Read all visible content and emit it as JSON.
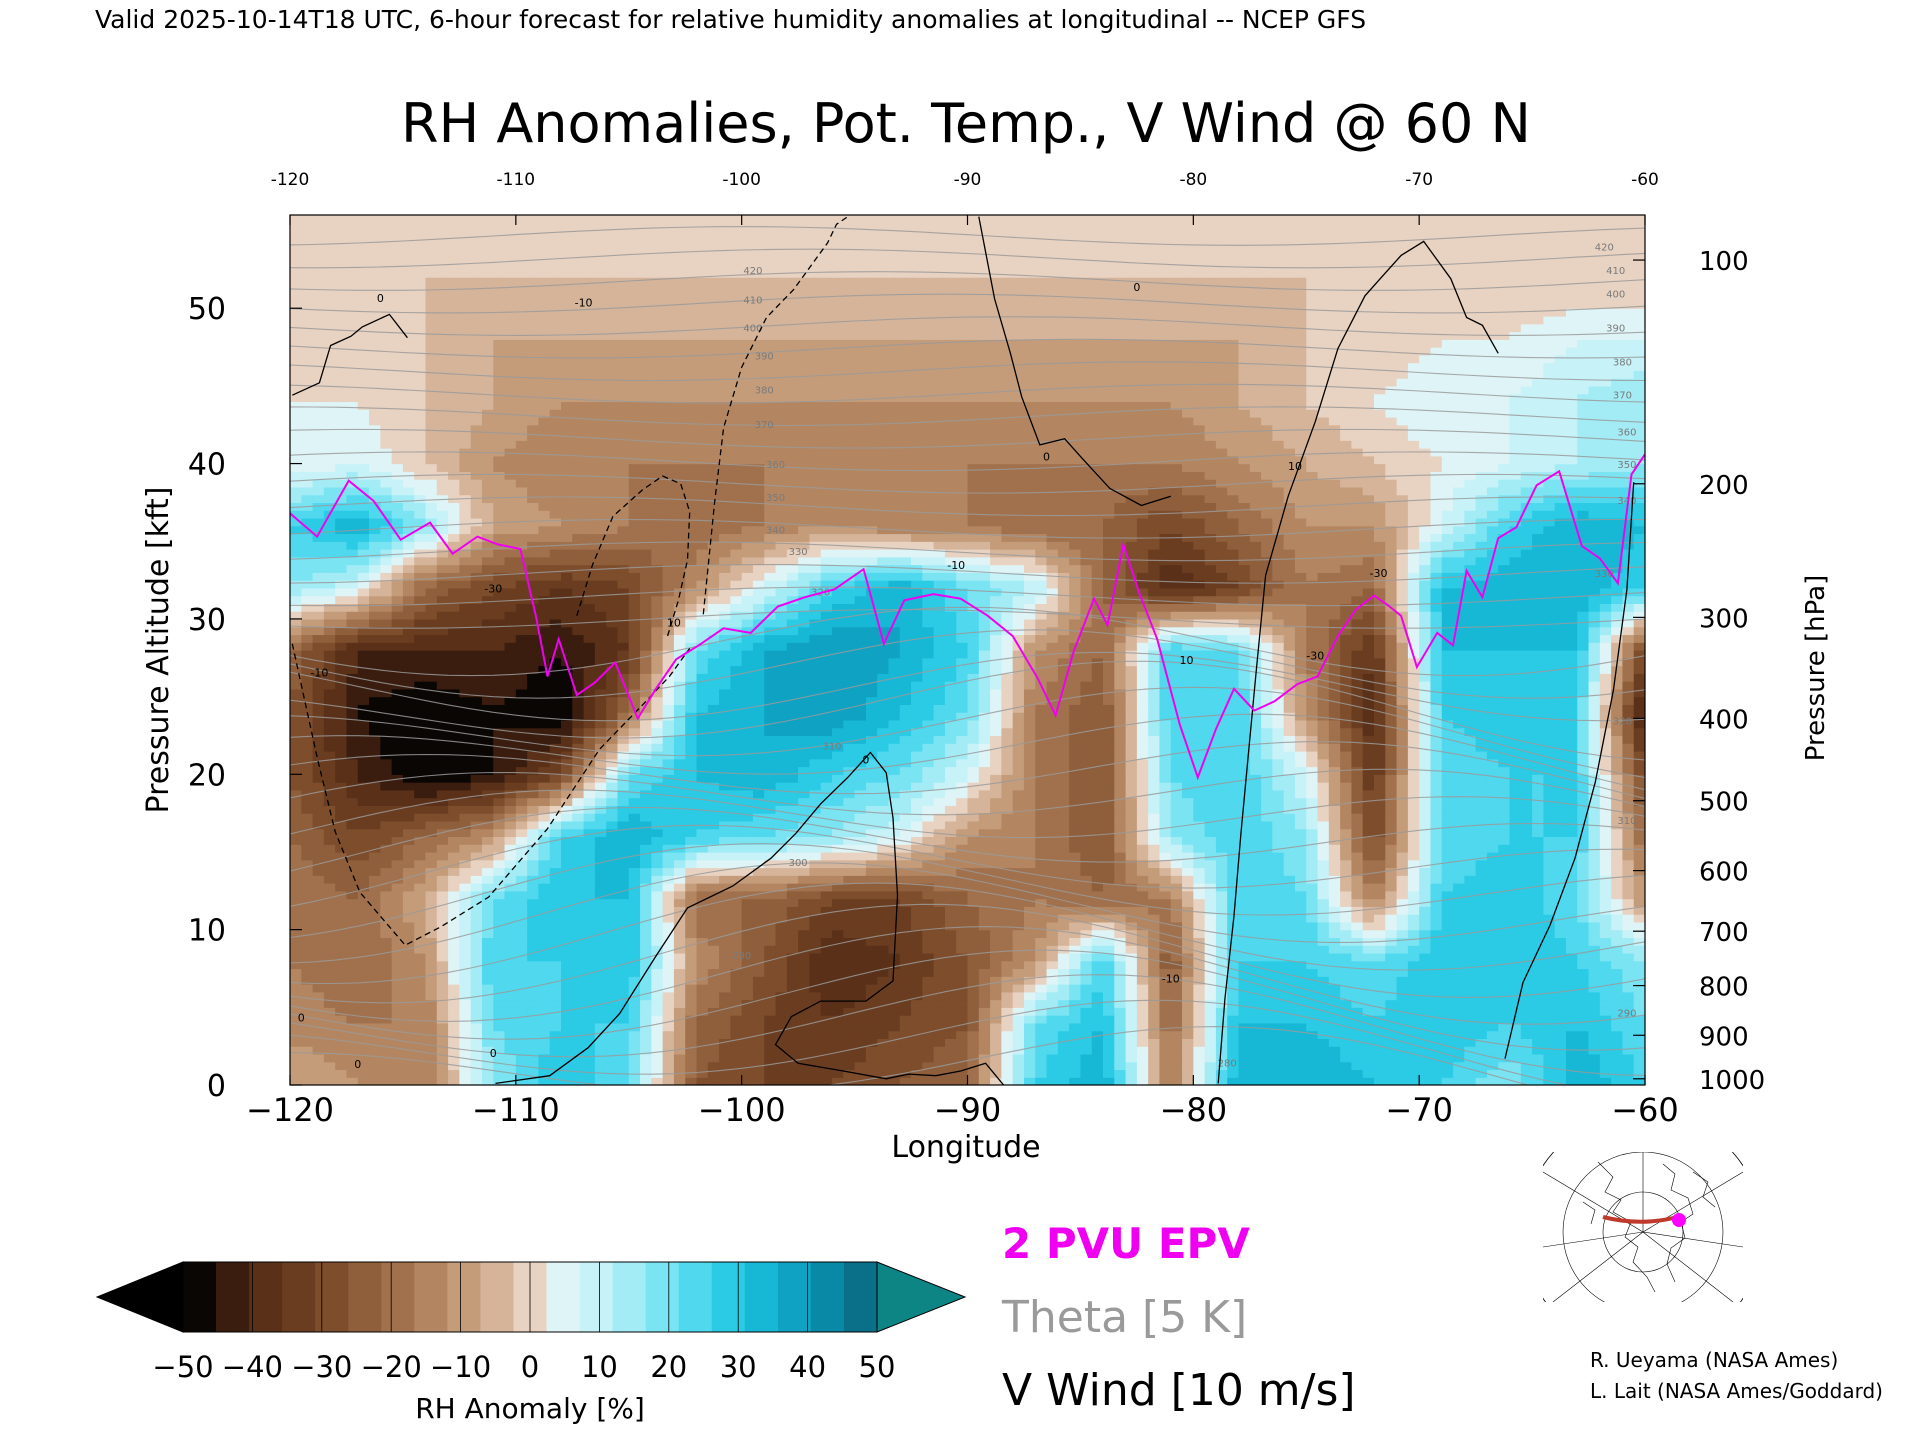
{
  "header": {
    "valid_line": "Valid 2025-10-14T18 UTC, 6-hour forecast for relative humidity anomalies at longitudinal -- NCEP GFS"
  },
  "chart_data": {
    "type": "heatmap",
    "title": "RH Anomalies, Pot. Temp., V Wind @ 60 N",
    "xlabel": "Longitude",
    "ylabel_left": "Pressure Altitude [kft]",
    "ylabel_right": "Pressure [hPa]",
    "xlim": [
      -120,
      -60
    ],
    "ylim": [
      0,
      56
    ],
    "x_ticks_bottom": [
      "−120",
      "−110",
      "−100",
      "−90",
      "−80",
      "−70",
      "−60"
    ],
    "x_ticks_top": [
      "-120",
      "-110",
      "-100",
      "-90",
      "-80",
      "-70",
      "-60"
    ],
    "x_tick_values": [
      -120,
      -110,
      -100,
      -90,
      -80,
      -70,
      -60
    ],
    "y_ticks_left": [
      "0",
      "10",
      "20",
      "30",
      "40",
      "50"
    ],
    "y_tick_values": [
      0,
      10,
      20,
      30,
      40,
      50
    ],
    "pressure_ticks": [
      {
        "label": "100",
        "kft": 53.1
      },
      {
        "label": "200",
        "kft": 38.7
      },
      {
        "label": "300",
        "kft": 30.1
      },
      {
        "label": "400",
        "kft": 23.6
      },
      {
        "label": "500",
        "kft": 18.3
      },
      {
        "label": "600",
        "kft": 13.8
      },
      {
        "label": "700",
        "kft": 9.9
      },
      {
        "label": "800",
        "kft": 6.4
      },
      {
        "label": "900",
        "kft": 3.2
      },
      {
        "label": "1000",
        "kft": 0.4
      }
    ],
    "rh_anomaly_x": [
      -120,
      -117,
      -114,
      -111,
      -108,
      -105,
      -102,
      -99,
      -96,
      -93,
      -90,
      -87,
      -84,
      -81,
      -78,
      -75,
      -72,
      -69,
      -66,
      -63,
      -60
    ],
    "rh_anomaly_y": [
      0,
      4,
      8,
      12,
      16,
      20,
      24,
      28,
      32,
      36,
      40,
      44,
      48,
      52,
      56
    ],
    "rh_anomaly_values": [
      [
        -5,
        -10,
        -15,
        20,
        35,
        25,
        -25,
        -30,
        -30,
        -25,
        -20,
        30,
        40,
        -15,
        40,
        40,
        35,
        30,
        20,
        40,
        30
      ],
      [
        -12,
        -15,
        -15,
        25,
        30,
        30,
        -20,
        -30,
        -35,
        -30,
        -25,
        25,
        35,
        -20,
        35,
        35,
        30,
        35,
        30,
        35,
        25
      ],
      [
        -15,
        -20,
        -10,
        30,
        30,
        35,
        -10,
        -25,
        -40,
        -35,
        -25,
        -10,
        30,
        -25,
        30,
        30,
        25,
        35,
        35,
        30,
        20
      ],
      [
        -15,
        -20,
        -5,
        25,
        35,
        35,
        -20,
        -20,
        -30,
        -30,
        -20,
        -15,
        -20,
        -15,
        30,
        25,
        -15,
        30,
        35,
        25,
        -10
      ],
      [
        -20,
        -30,
        -20,
        -10,
        30,
        40,
        30,
        25,
        20,
        10,
        -10,
        -15,
        -25,
        20,
        30,
        20,
        -30,
        25,
        30,
        30,
        -20
      ],
      [
        -25,
        -40,
        -50,
        -45,
        -30,
        25,
        35,
        40,
        30,
        25,
        10,
        -15,
        -25,
        25,
        30,
        10,
        -35,
        25,
        30,
        30,
        -30
      ],
      [
        -25,
        -45,
        -50,
        -45,
        -50,
        -20,
        35,
        40,
        45,
        35,
        25,
        -15,
        -25,
        30,
        30,
        -10,
        -40,
        30,
        35,
        30,
        -45
      ],
      [
        -20,
        -40,
        -40,
        -40,
        -45,
        -35,
        25,
        40,
        45,
        40,
        30,
        -10,
        -20,
        30,
        25,
        -15,
        -35,
        35,
        35,
        35,
        -30
      ],
      [
        20,
        10,
        -20,
        -30,
        -35,
        -30,
        -10,
        10,
        30,
        40,
        25,
        15,
        -20,
        -40,
        -30,
        -15,
        -20,
        35,
        40,
        40,
        30
      ],
      [
        30,
        40,
        20,
        -5,
        -10,
        -15,
        -20,
        -15,
        -10,
        -15,
        -15,
        -20,
        -20,
        -30,
        -20,
        -10,
        -10,
        10,
        30,
        40,
        35
      ],
      [
        5,
        10,
        0,
        -10,
        -15,
        -15,
        -15,
        -15,
        -15,
        -15,
        -15,
        -15,
        -15,
        -15,
        -10,
        -5,
        0,
        5,
        10,
        15,
        20
      ],
      [
        5,
        5,
        0,
        -5,
        -10,
        -10,
        -10,
        -10,
        -10,
        -10,
        -10,
        -10,
        -10,
        -10,
        -5,
        0,
        5,
        10,
        10,
        15,
        20
      ],
      [
        0,
        0,
        0,
        -5,
        -5,
        -5,
        -5,
        -5,
        -5,
        -5,
        -5,
        -5,
        -5,
        -5,
        -5,
        0,
        0,
        5,
        5,
        10,
        10
      ],
      [
        0,
        0,
        0,
        0,
        0,
        0,
        0,
        0,
        0,
        0,
        0,
        0,
        0,
        0,
        0,
        0,
        0,
        0,
        0,
        0,
        0
      ],
      [
        0,
        0,
        0,
        0,
        0,
        0,
        0,
        0,
        0,
        0,
        0,
        0,
        0,
        0,
        0,
        0,
        0,
        0,
        0,
        0,
        0
      ]
    ],
    "theta_labels": [
      "280",
      "290",
      "300",
      "310",
      "320",
      "330",
      "340",
      "350",
      "360",
      "370",
      "380",
      "390",
      "400",
      "410",
      "420"
    ],
    "theta_label_positions": [
      {
        "text": "420",
        "x": -99.5,
        "y": 52.2
      },
      {
        "text": "410",
        "x": -99.5,
        "y": 50.3
      },
      {
        "text": "400",
        "x": -99.5,
        "y": 48.5
      },
      {
        "text": "390",
        "x": -99,
        "y": 46.7
      },
      {
        "text": "380",
        "x": -99,
        "y": 44.5
      },
      {
        "text": "370",
        "x": -99,
        "y": 42.3
      },
      {
        "text": "360",
        "x": -98.5,
        "y": 39.7
      },
      {
        "text": "350",
        "x": -98.5,
        "y": 37.6
      },
      {
        "text": "340",
        "x": -98.5,
        "y": 35.5
      },
      {
        "text": "330",
        "x": -97.5,
        "y": 34.1
      },
      {
        "text": "320",
        "x": -96.5,
        "y": 31.5
      },
      {
        "text": "310",
        "x": -96,
        "y": 21.6
      },
      {
        "text": "300",
        "x": -97.5,
        "y": 14.1
      },
      {
        "text": "290",
        "x": -100,
        "y": 8.1
      },
      {
        "text": "280",
        "x": -78.5,
        "y": 1.2
      },
      {
        "text": "420",
        "x": -61.8,
        "y": 53.7
      },
      {
        "text": "410",
        "x": -61.3,
        "y": 52.2
      },
      {
        "text": "400",
        "x": -61.3,
        "y": 50.7
      },
      {
        "text": "390",
        "x": -61.3,
        "y": 48.5
      },
      {
        "text": "380",
        "x": -61,
        "y": 46.3
      },
      {
        "text": "370",
        "x": -61,
        "y": 44.2
      },
      {
        "text": "360",
        "x": -60.8,
        "y": 41.8
      },
      {
        "text": "350",
        "x": -60.8,
        "y": 39.7
      },
      {
        "text": "340",
        "x": -60.8,
        "y": 37.4
      },
      {
        "text": "330",
        "x": -61.8,
        "y": 32.7
      },
      {
        "text": "320",
        "x": -61,
        "y": 23.2
      },
      {
        "text": "310",
        "x": -60.8,
        "y": 16.8
      },
      {
        "text": "290",
        "x": -60.8,
        "y": 4.4
      }
    ],
    "v_wind_labels": [
      {
        "text": "0",
        "x": -116,
        "y": 50.4
      },
      {
        "text": "-10",
        "x": -107,
        "y": 50.1
      },
      {
        "text": "-30",
        "x": -111,
        "y": 31.7
      },
      {
        "text": "-10",
        "x": -118.7,
        "y": 26.3
      },
      {
        "text": "10",
        "x": -103,
        "y": 29.5
      },
      {
        "text": "-10",
        "x": -90.5,
        "y": 33.2
      },
      {
        "text": "0",
        "x": -94.5,
        "y": 20.7
      },
      {
        "text": "0",
        "x": -86.5,
        "y": 40.2
      },
      {
        "text": "10",
        "x": -75.5,
        "y": 39.6
      },
      {
        "text": "0",
        "x": -82.5,
        "y": 51.1
      },
      {
        "text": "10",
        "x": -80.3,
        "y": 27.1
      },
      {
        "text": "-10",
        "x": -81,
        "y": 6.6
      },
      {
        "text": "-30",
        "x": -71.8,
        "y": 32.7
      },
      {
        "text": "-30",
        "x": -74.6,
        "y": 27.4
      },
      {
        "text": "0",
        "x": -117,
        "y": 1.1
      },
      {
        "text": "0",
        "x": -111,
        "y": 1.8
      },
      {
        "text": "0",
        "x": -119.5,
        "y": 4.1
      }
    ],
    "v_wind_contours": {
      "solid_x": [
        [
          -119.9,
          -118.7,
          -118.2,
          -117.3,
          -116.8,
          -115.6,
          -114.8
        ],
        [
          -89.5,
          -88.8,
          -88.1,
          -87.6,
          -86.8,
          -85.7,
          -84.9,
          -83.7,
          -82.3,
          -81
        ],
        [
          -78.9,
          -78.6,
          -78.2,
          -77.9,
          -77.6,
          -77.2,
          -76.8,
          -75.8,
          -74.6,
          -73.6,
          -72.4,
          -71.6,
          -70.8,
          -69.8,
          -68.6,
          -67.9,
          -67.2,
          -66.5
        ],
        [
          -66.2,
          -65.4,
          -64.2,
          -63.1,
          -62.2,
          -61.4,
          -60.8,
          -60.5
        ],
        [
          -110.9,
          -108.5,
          -106.8,
          -105.4,
          -103.8,
          -102.4,
          -100.4,
          -98.7,
          -97.6,
          -96.5,
          -95.3,
          -94.3,
          -93.6,
          -93.3,
          -93.1,
          -93.3,
          -94.5,
          -96.5,
          -97.8,
          -98.5,
          -97.5,
          -95.5,
          -93.6,
          -92.6,
          -91.4,
          -90.3,
          -89.2,
          -88.4
        ]
      ],
      "solid_y": [
        [
          44.4,
          45.2,
          47.6,
          48.2,
          48.8,
          49.6,
          48.1
        ],
        [
          55.9,
          50.6,
          47.1,
          44.3,
          41.2,
          41.6,
          40.3,
          38.4,
          37.3,
          37.9
        ],
        [
          0.1,
          5.6,
          10.9,
          16.1,
          20.7,
          26.9,
          32.8,
          37.9,
          42.7,
          47.4,
          50.8,
          52.1,
          53.4,
          54.3,
          51.9,
          49.4,
          48.9,
          47.1
        ],
        [
          1.7,
          6.6,
          10.3,
          14.6,
          19.5,
          25.4,
          31.9,
          38.8
        ],
        [
          0.1,
          0.6,
          2.4,
          4.6,
          8.3,
          11.4,
          12.8,
          14.6,
          16.2,
          18.1,
          19.8,
          21.4,
          20.1,
          17.2,
          12.2,
          6.7,
          5.4,
          5.4,
          4.4,
          2.6,
          1.4,
          0.9,
          0.4,
          0.7,
          0.6,
          0.9,
          1.4,
          0.0
        ]
      ],
      "dashed_x": [
        [
          -119.9,
          -118.8,
          -118.0,
          -116.9,
          -114.9,
          -113.3,
          -111.2,
          -108.6,
          -106.3,
          -104.3,
          -103.2,
          -102.3
        ],
        [
          -101.7,
          -101.2,
          -100.8,
          -100.0,
          -98.9,
          -97.7,
          -96.9,
          -96.2,
          -95.8,
          -95.3
        ],
        [
          -107.3,
          -106.6,
          -105.7,
          -104.4,
          -103.5,
          -102.7,
          -102.3,
          -102.4,
          -102.8,
          -103.3
        ]
      ],
      "dashed_y": [
        [
          28.4,
          21.1,
          16.3,
          12.4,
          9.0,
          10.2,
          12.1,
          16.5,
          21.6,
          24.6,
          26.3,
          28.1
        ],
        [
          30.3,
          37.5,
          42.3,
          46.2,
          49.4,
          51.2,
          52.8,
          54.2,
          55.4,
          55.9
        ],
        [
          30.2,
          33.5,
          36.6,
          38.3,
          39.2,
          38.7,
          36.9,
          33.8,
          31.2,
          28.8
        ]
      ]
    },
    "epv_2pvu_line": {
      "x": [
        -120,
        -118.8,
        -117.4,
        -116.3,
        -115.1,
        -113.8,
        -112.8,
        -111.7,
        -110.8,
        -109.8,
        -109.1,
        -108.6,
        -108.1,
        -107.3,
        -106.5,
        -105.6,
        -104.6,
        -103.8,
        -102.9,
        -101.9,
        -100.8,
        -99.6,
        -98.4,
        -97.2,
        -95.9,
        -94.6,
        -93.7,
        -92.8,
        -91.5,
        -90.3,
        -89.1,
        -88,
        -86.9,
        -86.1,
        -85.3,
        -84.4,
        -83.8,
        -83.1,
        -82.4,
        -81.6,
        -80.6,
        -79.8,
        -79,
        -78.2,
        -77.3,
        -76.4,
        -75.4,
        -74.5,
        -73.6,
        -72.8,
        -72,
        -71.4,
        -70.8,
        -70.1,
        -69.2,
        -68.5,
        -67.9,
        -67.2,
        -66.5,
        -65.7,
        -64.8,
        -63.8,
        -62.8,
        -62,
        -61.2,
        -60.6,
        -60
      ],
      "y": [
        36.8,
        35.3,
        38.9,
        37.6,
        35.1,
        36.2,
        34.2,
        35.3,
        34.8,
        34.5,
        30.1,
        26.3,
        28.7,
        25.1,
        25.9,
        27.2,
        23.6,
        25.5,
        27.4,
        28.3,
        29.4,
        29.1,
        30.8,
        31.4,
        31.9,
        33.2,
        28.4,
        31.2,
        31.6,
        31.3,
        30.2,
        28.9,
        26.2,
        23.8,
        27.9,
        31.3,
        29.6,
        34.8,
        31.7,
        28.7,
        23.2,
        19.8,
        22.9,
        25.5,
        24.1,
        24.7,
        25.8,
        26.3,
        28.9,
        30.6,
        31.5,
        30.9,
        30.2,
        26.9,
        29.1,
        28.3,
        33.1,
        31.4,
        35.2,
        35.9,
        38.6,
        39.5,
        34.7,
        33.9,
        32.3,
        39.3,
        40.6
      ]
    },
    "colorbar": {
      "label": "RH Anomaly [%]",
      "tick_labels": [
        "−50",
        "−40",
        "−30",
        "−20",
        "−10",
        "0",
        "10",
        "20",
        "30",
        "40",
        "50"
      ],
      "tick_values": [
        -50,
        -40,
        -30,
        -20,
        -10,
        0,
        10,
        20,
        30,
        40,
        50
      ],
      "bins": [
        -50,
        -45,
        -40,
        -35,
        -30,
        -25,
        -20,
        -15,
        -10,
        -5,
        0,
        5,
        10,
        15,
        20,
        25,
        30,
        35,
        40,
        45,
        50
      ],
      "colors": [
        "#0a0604",
        "#3a1d0f",
        "#5a3018",
        "#6b3d20",
        "#7d4d2c",
        "#8f5f3c",
        "#a1714d",
        "#b38661",
        "#c49c7a",
        "#d5b49a",
        "#e8d2c1",
        "#dff4f6",
        "#c6f2f8",
        "#a3ecf6",
        "#7ae4f3",
        "#4fd8ee",
        "#2ccbe5",
        "#17b8d6",
        "#0fa2c2",
        "#0a89a6",
        "#0a6f88"
      ],
      "under_color": "#000000",
      "over_color": "#0d8585"
    },
    "legend": [
      {
        "label": "2 PVU EPV",
        "color": "#f000f0"
      },
      {
        "label": "Theta [5 K]",
        "color": "#9a9a9a"
      },
      {
        "label": "V Wind [10 m/s]",
        "color": "#000000"
      }
    ]
  },
  "credits": {
    "line1": "R. Ueyama (NASA Ames)",
    "line2": "L. Lait (NASA Ames/Goddard)"
  },
  "inset_map": {
    "marker_color": "#ff00ff",
    "track_color": "#c0392b"
  }
}
